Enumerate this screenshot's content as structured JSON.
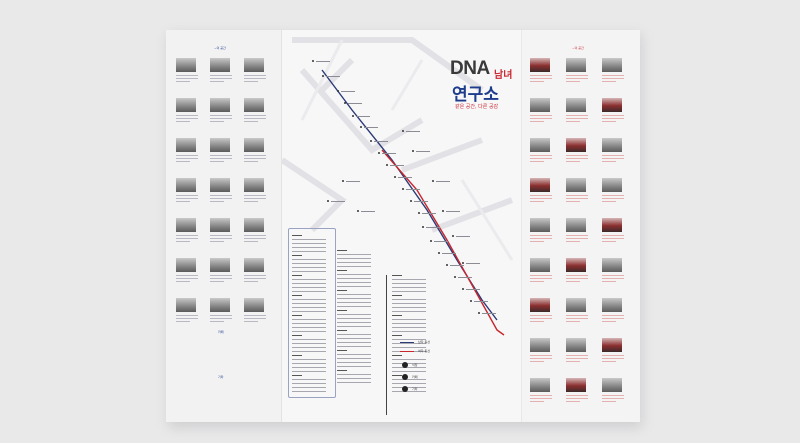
{
  "title": {
    "dna": "DNA",
    "gender": "남녀",
    "lab": "연구소"
  },
  "subtitle": "같은 공간, 다른 공감",
  "left_panel": {
    "heading": "~의 공간",
    "section2": "카페",
    "section3": "기타"
  },
  "right_panel": {
    "heading": "~의 공간"
  },
  "legend": {
    "line1": "남자 동선",
    "line2": "여자 동선",
    "icon1": "식당",
    "icon2": "카페",
    "icon3": "기타"
  },
  "colors": {
    "blue": "#1e3c8c",
    "red": "#c8262c",
    "paper": "#f7f7f8"
  }
}
